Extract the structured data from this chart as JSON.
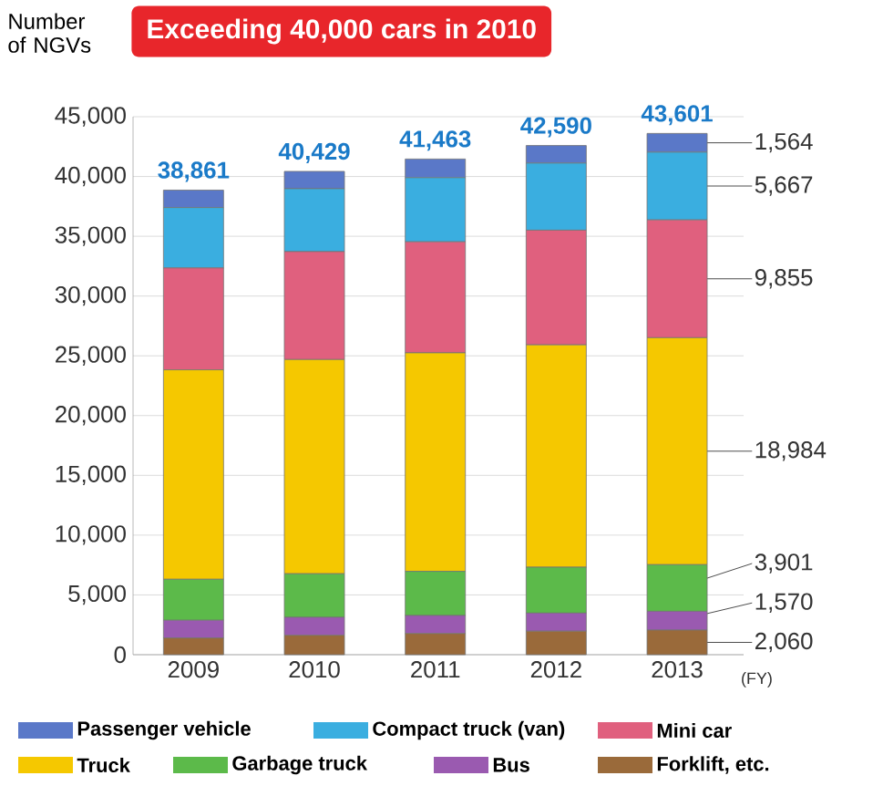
{
  "chart_data": {
    "type": "bar",
    "stacked": true,
    "title": "Exceeding 40,000 cars in 2010",
    "ylabel": "Number of NGVs",
    "xlabel": "(FY)",
    "categories": [
      "2009",
      "2010",
      "2011",
      "2012",
      "2013"
    ],
    "series": [
      {
        "name": "Forklift, etc.",
        "color": "#9a6a3a",
        "values": [
          1400,
          1620,
          1770,
          1970,
          2060
        ],
        "value_labels": [
          null,
          null,
          null,
          null,
          "2,060"
        ]
      },
      {
        "name": "Bus",
        "color": "#9a5ab0",
        "values": [
          1480,
          1510,
          1510,
          1510,
          1570
        ],
        "value_labels": [
          null,
          null,
          null,
          null,
          "1,570"
        ]
      },
      {
        "name": "Garbage truck",
        "color": "#5cba4a",
        "values": [
          3430,
          3640,
          3690,
          3840,
          3901
        ],
        "value_labels": [
          null,
          null,
          null,
          null,
          "3,901"
        ]
      },
      {
        "name": "Truck",
        "color": "#f5c800",
        "values": [
          17520,
          17920,
          18280,
          18600,
          18984
        ],
        "value_labels": [
          null,
          null,
          null,
          null,
          "18,984"
        ]
      },
      {
        "name": "Mini car",
        "color": "#e0607e",
        "values": [
          8520,
          9030,
          9290,
          9590,
          9855
        ],
        "value_labels": [
          null,
          null,
          null,
          null,
          "9,855"
        ]
      },
      {
        "name": "Compact truck (van)",
        "color": "#3aaee0",
        "values": [
          5050,
          5260,
          5360,
          5610,
          5667
        ],
        "value_labels": [
          null,
          null,
          null,
          null,
          "5,667"
        ]
      },
      {
        "name": "Passenger vehicle",
        "color": "#5a78c8",
        "values": [
          1461,
          1449,
          1563,
          1470,
          1564
        ],
        "value_labels": [
          null,
          null,
          null,
          null,
          "1,564"
        ]
      }
    ],
    "totals": [
      "38,861",
      "40,429",
      "41,463",
      "42,590",
      "43,601"
    ],
    "ylim": [
      0,
      45000
    ],
    "yticks": [
      {
        "value": 0,
        "label": "0"
      },
      {
        "value": 5000,
        "label": "5,000"
      },
      {
        "value": 10000,
        "label": "10,000"
      },
      {
        "value": 15000,
        "label": "15,000"
      },
      {
        "value": 20000,
        "label": "20,000"
      },
      {
        "value": 25000,
        "label": "25,000"
      },
      {
        "value": 30000,
        "label": "30,000"
      },
      {
        "value": 35000,
        "label": "35,000"
      },
      {
        "value": 40000,
        "label": "40,000"
      },
      {
        "value": 45000,
        "label": "45,000"
      }
    ],
    "grid": "y",
    "legend": "bottom"
  }
}
